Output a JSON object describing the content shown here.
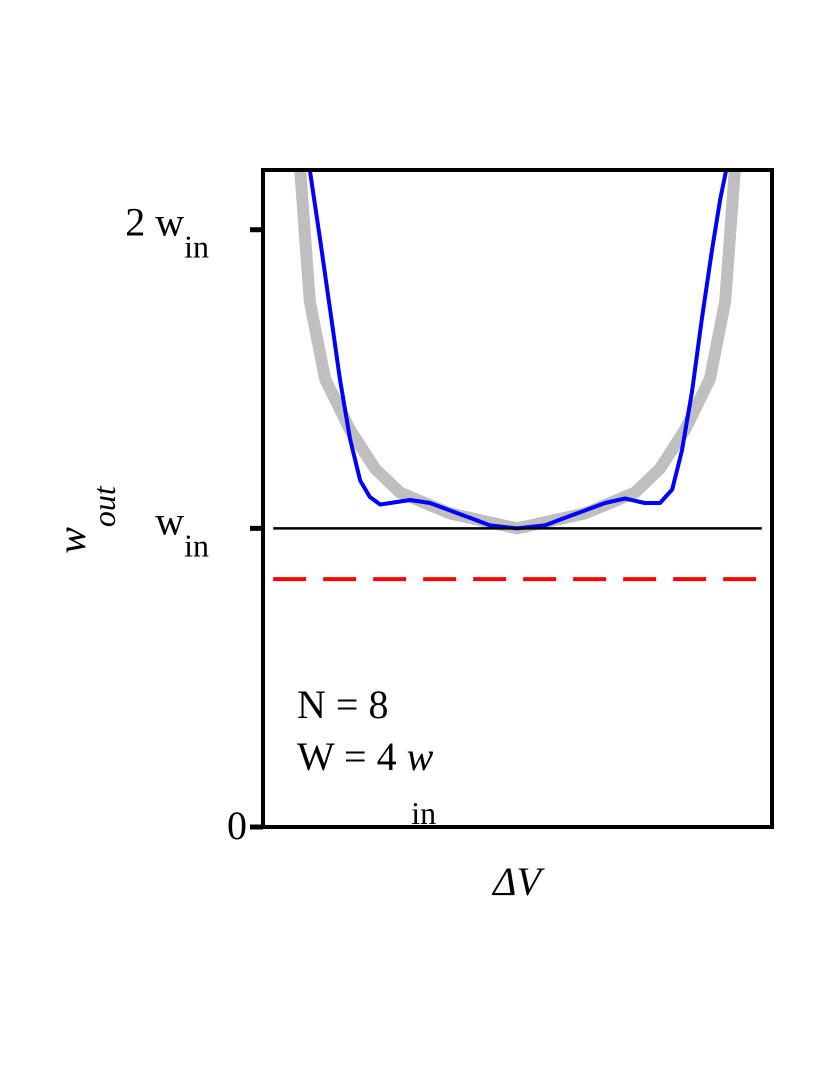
{
  "chart_data": {
    "type": "line",
    "ylabel": {
      "text": "w",
      "subscript": "out"
    },
    "xlabel": "ΔV",
    "xlim": [
      0,
      100
    ],
    "ylim": [
      0,
      2.2
    ],
    "yticks": [
      0,
      {
        "value": 1,
        "label": "w",
        "subscript": "in"
      },
      {
        "value": 2,
        "label": "2 w",
        "subscript": "in"
      }
    ],
    "series": [
      {
        "color": "#bfbfbf",
        "width": 12,
        "x": [
          7.3,
          9.2,
          12.2,
          17.1,
          22,
          26.9,
          36.7,
          49.9,
          63.3,
          73.1,
          78,
          82.9,
          87.8,
          90.8,
          92.7
        ],
        "values": [
          2.2,
          1.76,
          1.5,
          1.33,
          1.2,
          1.12,
          1.05,
          1.0,
          1.05,
          1.12,
          1.2,
          1.33,
          1.5,
          1.76,
          2.2
        ]
      },
      {
        "color": "#0000ff",
        "width": 4,
        "x": [
          9.2,
          11.2,
          13.2,
          15.1,
          17.1,
          19.1,
          21.0,
          23.0,
          25.0,
          28.9,
          32.8,
          36.7,
          40.7,
          44.6,
          49.9,
          55.4,
          59.3,
          63.3,
          67.2,
          71.1,
          75.0,
          78.0,
          80.4,
          82.3,
          84.3,
          86.2,
          88.2,
          89.8,
          91.0
        ],
        "values": [
          2.2,
          1.97,
          1.73,
          1.5,
          1.3,
          1.16,
          1.105,
          1.08,
          1.085,
          1.095,
          1.085,
          1.06,
          1.035,
          1.01,
          1.0,
          1.01,
          1.035,
          1.06,
          1.085,
          1.1,
          1.085,
          1.085,
          1.13,
          1.26,
          1.46,
          1.7,
          1.93,
          2.1,
          2.2
        ]
      }
    ],
    "hlines": [
      {
        "value": 1,
        "color": "#000000",
        "dashed": false
      },
      {
        "value": 0.83,
        "color": "#ff0000",
        "dashed": true
      }
    ],
    "annotations": [
      {
        "text": "N = 8"
      },
      {
        "text": "W = 4 ",
        "var": "w",
        "subscript": "in"
      }
    ]
  }
}
